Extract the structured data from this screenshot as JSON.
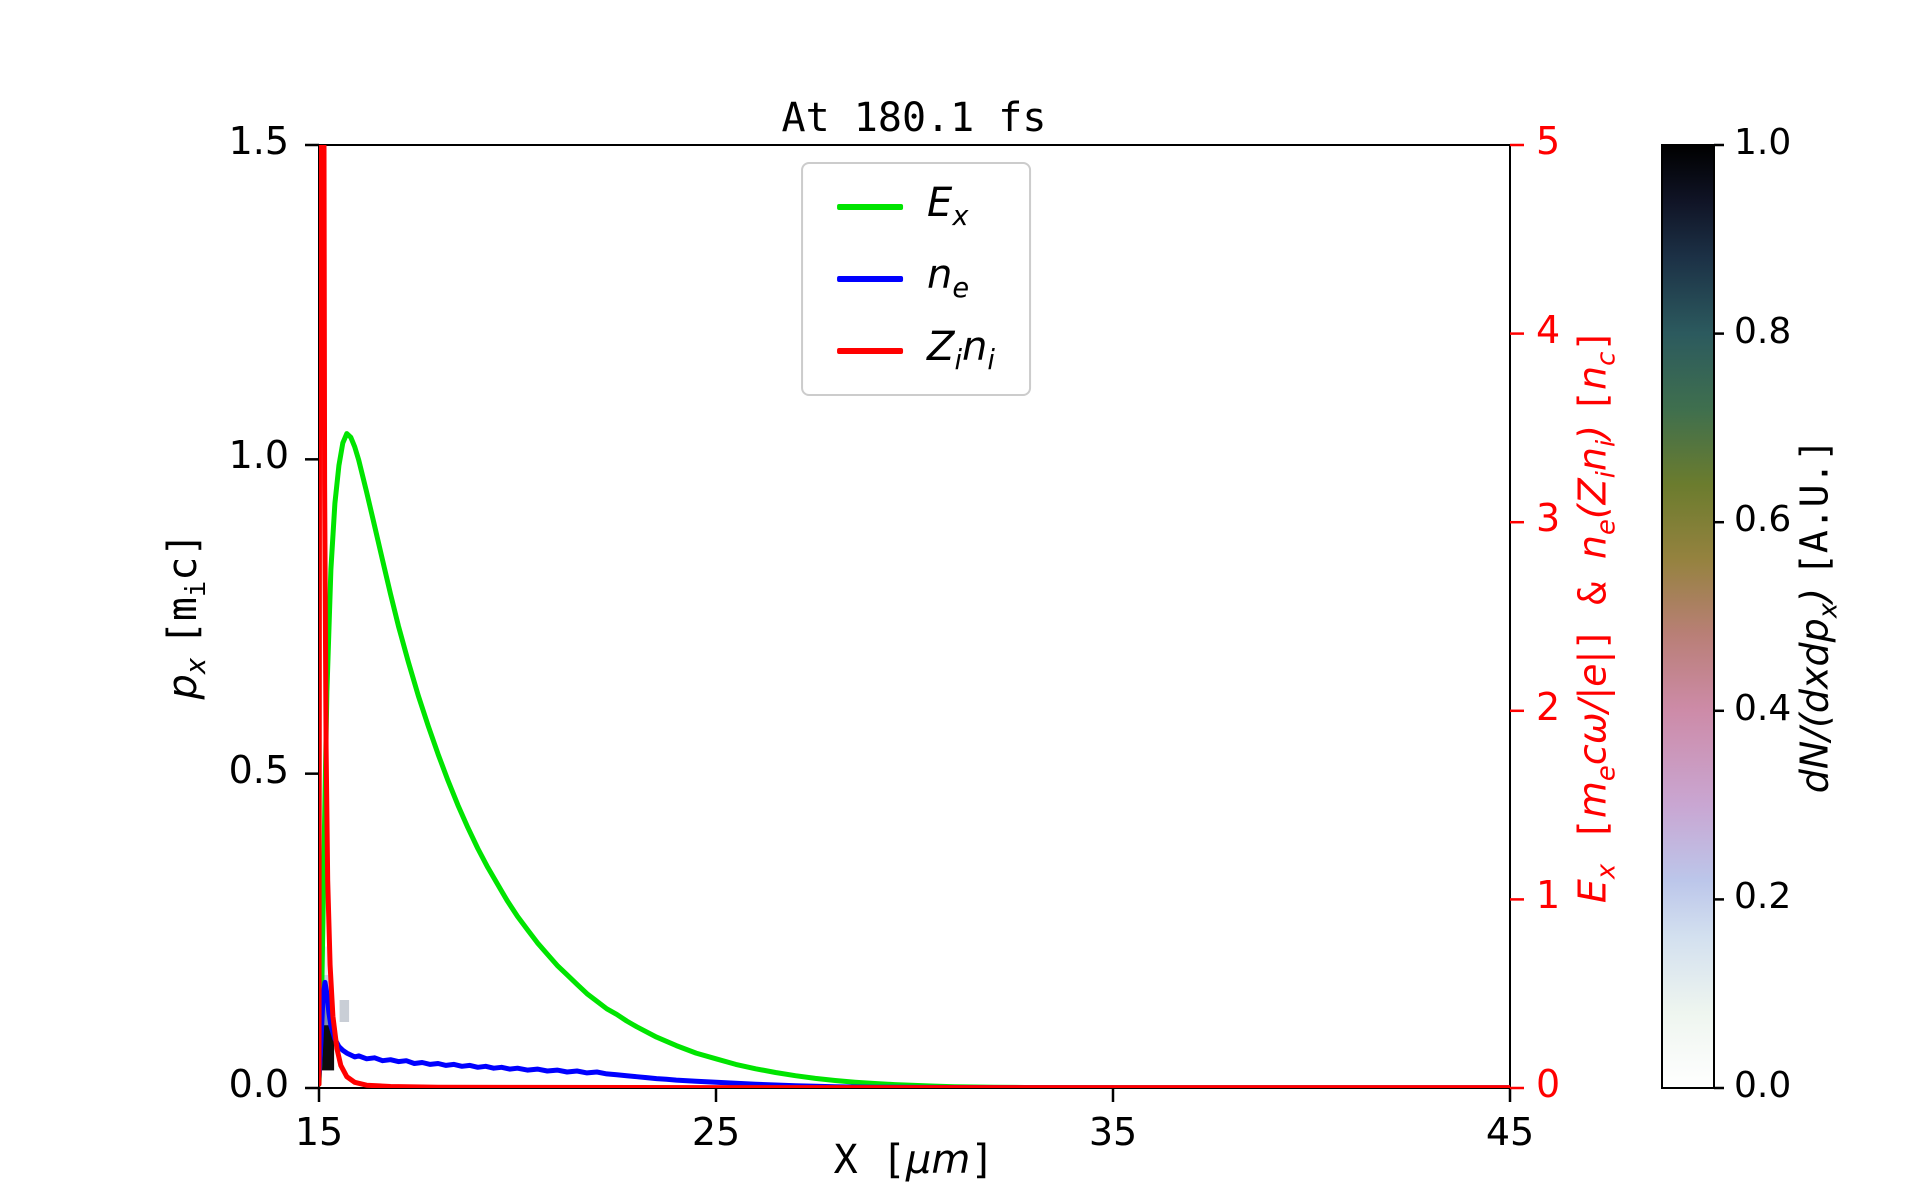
{
  "chart_data": {
    "type": "line",
    "title": "At 180.1 fs",
    "xlabel": "X [µm]",
    "ylabel_left": "p_x [m_i c]",
    "ylabel_right": "E_x [m_e cω/|e|] & n_e(Z_i n_i) [n_c]",
    "colorbar_label": "dN/(dxdp_x) [A.U.]",
    "x_range": [
      15,
      45
    ],
    "x_ticks": [
      15,
      25,
      35,
      45
    ],
    "x_tick_labels": [
      "15",
      "25",
      "35",
      "45"
    ],
    "left_ylim": [
      0,
      1.5
    ],
    "left_tick_values": [
      0,
      0.5,
      1.0,
      1.5
    ],
    "left_ticks": [
      "0.0",
      "0.5",
      "1.0",
      "1.5"
    ],
    "right_ylim": [
      0,
      5
    ],
    "right_tick_values": [
      0,
      1,
      2,
      3,
      4,
      5
    ],
    "right_ticks": [
      "0",
      "1",
      "2",
      "3",
      "4",
      "5"
    ],
    "right_color": "#ff0000",
    "colorbar_tick_values": [
      0,
      0.2,
      0.4,
      0.6,
      0.8,
      1.0
    ],
    "colorbar_ticks": [
      "0.0",
      "0.2",
      "0.4",
      "0.6",
      "0.8",
      "1.0"
    ],
    "colorbar_range": [
      0.0,
      1.0
    ],
    "grid": false,
    "legend_position": "upper center",
    "colormap_stops": [
      [
        0.0,
        "#ffffff"
      ],
      [
        0.08,
        "#eef5ef"
      ],
      [
        0.16,
        "#d3e0ef"
      ],
      [
        0.22,
        "#bcc6ea"
      ],
      [
        0.3,
        "#c9a6d2"
      ],
      [
        0.4,
        "#cd8ba8"
      ],
      [
        0.48,
        "#b97f77"
      ],
      [
        0.56,
        "#95823f"
      ],
      [
        0.64,
        "#6b7c2e"
      ],
      [
        0.72,
        "#3f6f4e"
      ],
      [
        0.8,
        "#2c5a5e"
      ],
      [
        0.88,
        "#1c3146"
      ],
      [
        0.94,
        "#101426"
      ],
      [
        1.0,
        "#000000"
      ]
    ],
    "series": [
      {
        "name": "E_x",
        "axis": "right",
        "color": "#00e400",
        "points": [
          [
            15.0,
            0.02
          ],
          [
            15.05,
            0.3
          ],
          [
            15.1,
            0.9
          ],
          [
            15.15,
            1.55
          ],
          [
            15.2,
            2.1
          ],
          [
            15.3,
            2.75
          ],
          [
            15.4,
            3.1
          ],
          [
            15.5,
            3.3
          ],
          [
            15.6,
            3.42
          ],
          [
            15.7,
            3.47
          ],
          [
            15.8,
            3.45
          ],
          [
            15.9,
            3.4
          ],
          [
            16.0,
            3.33
          ],
          [
            16.2,
            3.16
          ],
          [
            16.4,
            2.98
          ],
          [
            16.6,
            2.8
          ],
          [
            16.8,
            2.62
          ],
          [
            17.0,
            2.45
          ],
          [
            17.25,
            2.26
          ],
          [
            17.5,
            2.08
          ],
          [
            17.75,
            1.92
          ],
          [
            18.0,
            1.77
          ],
          [
            18.25,
            1.63
          ],
          [
            18.5,
            1.5
          ],
          [
            18.75,
            1.38
          ],
          [
            19.0,
            1.27
          ],
          [
            19.25,
            1.17
          ],
          [
            19.5,
            1.08
          ],
          [
            19.75,
            0.99
          ],
          [
            20.0,
            0.91
          ],
          [
            20.25,
            0.84
          ],
          [
            20.5,
            0.77
          ],
          [
            20.75,
            0.71
          ],
          [
            21.0,
            0.65
          ],
          [
            21.25,
            0.6
          ],
          [
            21.5,
            0.55
          ],
          [
            21.75,
            0.5
          ],
          [
            22.0,
            0.46
          ],
          [
            22.25,
            0.42
          ],
          [
            22.5,
            0.39
          ],
          [
            22.75,
            0.355
          ],
          [
            23.0,
            0.325
          ],
          [
            23.5,
            0.27
          ],
          [
            24.0,
            0.225
          ],
          [
            24.5,
            0.185
          ],
          [
            25.0,
            0.155
          ],
          [
            25.5,
            0.125
          ],
          [
            26.0,
            0.102
          ],
          [
            26.5,
            0.082
          ],
          [
            27.0,
            0.065
          ],
          [
            27.5,
            0.051
          ],
          [
            28.0,
            0.04
          ],
          [
            28.5,
            0.031
          ],
          [
            29.0,
            0.024
          ],
          [
            29.5,
            0.018
          ],
          [
            30.0,
            0.014
          ],
          [
            30.5,
            0.01
          ],
          [
            31.0,
            0.007
          ],
          [
            32.0,
            0.004
          ],
          [
            33.0,
            0.002
          ],
          [
            34.0,
            0.001
          ],
          [
            36.0,
            0.0005
          ],
          [
            40.0,
            0.0003
          ],
          [
            45.0,
            0.0002
          ]
        ]
      },
      {
        "name": "n_e",
        "axis": "right",
        "color": "#0000ff",
        "points": [
          [
            15.0,
            0.05
          ],
          [
            15.05,
            0.25
          ],
          [
            15.1,
            0.48
          ],
          [
            15.15,
            0.56
          ],
          [
            15.2,
            0.5
          ],
          [
            15.25,
            0.4
          ],
          [
            15.3,
            0.33
          ],
          [
            15.4,
            0.26
          ],
          [
            15.5,
            0.22
          ],
          [
            15.6,
            0.2
          ],
          [
            15.7,
            0.185
          ],
          [
            15.8,
            0.175
          ],
          [
            15.9,
            0.165
          ],
          [
            16.0,
            0.17
          ],
          [
            16.2,
            0.155
          ],
          [
            16.4,
            0.16
          ],
          [
            16.6,
            0.145
          ],
          [
            16.8,
            0.15
          ],
          [
            17.0,
            0.14
          ],
          [
            17.2,
            0.145
          ],
          [
            17.4,
            0.13
          ],
          [
            17.6,
            0.135
          ],
          [
            17.8,
            0.125
          ],
          [
            18.0,
            0.13
          ],
          [
            18.2,
            0.12
          ],
          [
            18.4,
            0.125
          ],
          [
            18.6,
            0.115
          ],
          [
            18.8,
            0.12
          ],
          [
            19.0,
            0.11
          ],
          [
            19.2,
            0.115
          ],
          [
            19.4,
            0.105
          ],
          [
            19.6,
            0.11
          ],
          [
            19.8,
            0.1
          ],
          [
            20.0,
            0.105
          ],
          [
            20.25,
            0.095
          ],
          [
            20.5,
            0.1
          ],
          [
            20.75,
            0.09
          ],
          [
            21.0,
            0.095
          ],
          [
            21.25,
            0.085
          ],
          [
            21.5,
            0.09
          ],
          [
            21.75,
            0.08
          ],
          [
            22.0,
            0.085
          ],
          [
            22.25,
            0.075
          ],
          [
            22.5,
            0.07
          ],
          [
            22.75,
            0.065
          ],
          [
            23.0,
            0.06
          ],
          [
            23.25,
            0.055
          ],
          [
            23.5,
            0.05
          ],
          [
            23.75,
            0.046
          ],
          [
            24.0,
            0.042
          ],
          [
            24.5,
            0.036
          ],
          [
            25.0,
            0.03
          ],
          [
            25.5,
            0.025
          ],
          [
            26.0,
            0.02
          ],
          [
            26.5,
            0.016
          ],
          [
            27.0,
            0.012
          ],
          [
            27.5,
            0.009
          ],
          [
            28.0,
            0.007
          ],
          [
            29.0,
            0.004
          ],
          [
            30.0,
            0.003
          ],
          [
            32.0,
            0.002
          ],
          [
            35.0,
            0.001
          ],
          [
            45.0,
            0.001
          ]
        ]
      },
      {
        "name": "Z_i n_i",
        "axis": "right",
        "color": "#ff0000",
        "points": [
          [
            15.0,
            0.02
          ],
          [
            15.02,
            5.6
          ],
          [
            15.12,
            5.6
          ],
          [
            15.14,
            3.2
          ],
          [
            15.18,
            1.8
          ],
          [
            15.22,
            1.1
          ],
          [
            15.28,
            0.65
          ],
          [
            15.35,
            0.38
          ],
          [
            15.45,
            0.21
          ],
          [
            15.55,
            0.12
          ],
          [
            15.7,
            0.06
          ],
          [
            15.9,
            0.03
          ],
          [
            16.2,
            0.015
          ],
          [
            16.8,
            0.008
          ],
          [
            18.0,
            0.004
          ],
          [
            20.0,
            0.003
          ],
          [
            25.0,
            0.002
          ],
          [
            30.0,
            0.002
          ],
          [
            45.0,
            0.002
          ]
        ]
      }
    ],
    "heatmap_cells": [
      {
        "x0": 15.02,
        "x1": 15.38,
        "p0": 0.028,
        "p1": 0.1,
        "c": "#0d0d0d"
      },
      {
        "x0": 15.02,
        "x1": 15.3,
        "p0": 0.1,
        "p1": 0.14,
        "c": "#7e8ba6"
      },
      {
        "x0": 15.02,
        "x1": 15.26,
        "p0": 0.14,
        "p1": 0.18,
        "c": "#c6d0e6"
      },
      {
        "x0": 15.02,
        "x1": 15.22,
        "p0": 0.18,
        "p1": 0.225,
        "c": "#e8edf6"
      },
      {
        "x0": 15.52,
        "x1": 15.76,
        "p0": 0.105,
        "p1": 0.14,
        "c": "#c9ced6"
      }
    ]
  },
  "labels": {
    "title": "At 180.1 fs",
    "x_label_segs": [
      {
        "t": "X [",
        "m": 1
      },
      {
        "t": "μm",
        "i": 1
      },
      {
        "t": "]",
        "m": 1
      }
    ],
    "y_left_segs": [
      {
        "t": "p",
        "i": 1
      },
      {
        "t": "x",
        "i": 1,
        "s": 1
      },
      {
        "t": " "
      },
      {
        "t": "[m",
        "m": 1
      },
      {
        "t": "i",
        "m": 1,
        "s": 1
      },
      {
        "t": "c]",
        "m": 1
      }
    ],
    "y_right_segs": [
      {
        "t": "E",
        "i": 1
      },
      {
        "t": "x",
        "i": 1,
        "s": 1
      },
      {
        "t": " [",
        "m": 1
      },
      {
        "t": "m",
        "i": 1
      },
      {
        "t": "e",
        "i": 1,
        "s": 1
      },
      {
        "t": "cω/|e|",
        "i": 1
      },
      {
        "t": "] & ",
        "m": 1
      },
      {
        "t": "n",
        "i": 1
      },
      {
        "t": "e",
        "i": 1,
        "s": 1
      },
      {
        "t": "(",
        "i": 1
      },
      {
        "t": "Z",
        "i": 1
      },
      {
        "t": "i",
        "i": 1,
        "s": 1
      },
      {
        "t": "n",
        "i": 1
      },
      {
        "t": "i",
        "i": 1,
        "s": 1
      },
      {
        "t": ") ",
        "i": 1
      },
      {
        "t": "[",
        "m": 1
      },
      {
        "t": "n",
        "i": 1
      },
      {
        "t": "c",
        "i": 1,
        "s": 1
      },
      {
        "t": "]",
        "m": 1
      }
    ],
    "colorbar_segs": [
      {
        "t": "d",
        "i": 1
      },
      {
        "t": "N",
        "i": 1
      },
      {
        "t": "/(",
        "i": 1
      },
      {
        "t": "d",
        "i": 1
      },
      {
        "t": "x",
        "i": 1
      },
      {
        "t": "d",
        "i": 1
      },
      {
        "t": "p",
        "i": 1
      },
      {
        "t": "x",
        "i": 1,
        "s": 1
      },
      {
        "t": ") ",
        "i": 1
      },
      {
        "t": "[A.U.]",
        "m": 1
      }
    ]
  },
  "legend": {
    "items": [
      {
        "segs": [
          {
            "t": "E",
            "i": 1
          },
          {
            "t": "x",
            "i": 1,
            "s": 1
          }
        ],
        "series_index": 0
      },
      {
        "segs": [
          {
            "t": "n",
            "i": 1
          },
          {
            "t": "e",
            "i": 1,
            "s": 1
          }
        ],
        "series_index": 1
      },
      {
        "segs": [
          {
            "t": "Z",
            "i": 1
          },
          {
            "t": "i",
            "i": 1,
            "s": 1
          },
          {
            "t": "n",
            "i": 1
          },
          {
            "t": "i",
            "i": 1,
            "s": 1
          }
        ],
        "series_index": 2
      }
    ]
  }
}
